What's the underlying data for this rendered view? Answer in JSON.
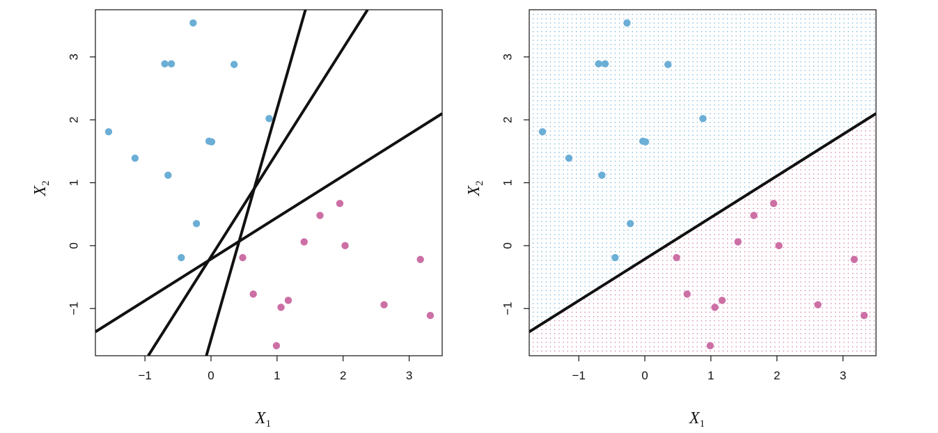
{
  "chart_data": [
    {
      "type": "scatter",
      "xlabel": "X",
      "xlabel_sub": "1",
      "ylabel": "X",
      "ylabel_sub": "2",
      "xlim": [
        -1.75,
        3.5
      ],
      "ylim": [
        -1.75,
        3.75
      ],
      "x_ticks": [
        -1,
        0,
        1,
        2,
        3
      ],
      "y_ticks": [
        -1,
        0,
        1,
        2,
        3
      ],
      "x_tick_labels": [
        "−1",
        "0",
        "1",
        "2",
        "3"
      ],
      "y_tick_labels": [
        "−1",
        "0",
        "1",
        "2",
        "3"
      ],
      "grid": false,
      "background_region": false,
      "series": [
        {
          "color": "#6baed6",
          "points": [
            [
              -0.27,
              3.54
            ],
            [
              -0.7,
              2.89
            ],
            [
              -0.6,
              2.89
            ],
            [
              0.35,
              2.88
            ],
            [
              0.88,
              2.02
            ],
            [
              -1.55,
              1.81
            ],
            [
              -0.03,
              1.66
            ],
            [
              0.01,
              1.65
            ],
            [
              -1.15,
              1.39
            ],
            [
              -0.65,
              1.12
            ],
            [
              -0.22,
              0.35
            ],
            [
              -0.45,
              -0.19
            ]
          ]
        },
        {
          "color": "#cc6fa5",
          "points": [
            [
              1.95,
              0.67
            ],
            [
              1.65,
              0.48
            ],
            [
              1.41,
              0.06
            ],
            [
              2.03,
              0.0
            ],
            [
              0.48,
              -0.19
            ],
            [
              3.17,
              -0.22
            ],
            [
              0.64,
              -0.77
            ],
            [
              1.17,
              -0.87
            ],
            [
              1.06,
              -0.98
            ],
            [
              2.62,
              -0.94
            ],
            [
              3.32,
              -1.11
            ],
            [
              0.99,
              -1.59
            ]
          ]
        }
      ],
      "lines": [
        {
          "points": [
            [
              -1.75,
              -1.37
            ],
            [
              3.5,
              2.1
            ]
          ]
        },
        {
          "points": [
            [
              -0.95,
              -1.75
            ],
            [
              2.37,
              3.75
            ]
          ]
        },
        {
          "points": [
            [
              -0.07,
              -1.75
            ],
            [
              1.43,
              3.75
            ]
          ]
        }
      ]
    },
    {
      "type": "scatter",
      "xlabel": "X",
      "xlabel_sub": "1",
      "ylabel": "X",
      "ylabel_sub": "2",
      "xlim": [
        -1.75,
        3.5
      ],
      "ylim": [
        -1.75,
        3.75
      ],
      "x_ticks": [
        -1,
        0,
        1,
        2,
        3
      ],
      "y_ticks": [
        -1,
        0,
        1,
        2,
        3
      ],
      "x_tick_labels": [
        "−1",
        "0",
        "1",
        "2",
        "3"
      ],
      "y_tick_labels": [
        "−1",
        "0",
        "1",
        "2",
        "3"
      ],
      "grid": false,
      "background_region": true,
      "region_colors": {
        "above": "#6baed6",
        "below": "#cc6fa5"
      },
      "series": [
        {
          "color": "#6baed6",
          "points": [
            [
              -0.27,
              3.54
            ],
            [
              -0.7,
              2.89
            ],
            [
              -0.6,
              2.89
            ],
            [
              0.35,
              2.88
            ],
            [
              0.88,
              2.02
            ],
            [
              -1.55,
              1.81
            ],
            [
              -0.03,
              1.66
            ],
            [
              0.01,
              1.65
            ],
            [
              -1.15,
              1.39
            ],
            [
              -0.65,
              1.12
            ],
            [
              -0.22,
              0.35
            ],
            [
              -0.45,
              -0.19
            ]
          ]
        },
        {
          "color": "#cc6fa5",
          "points": [
            [
              1.95,
              0.67
            ],
            [
              1.65,
              0.48
            ],
            [
              1.41,
              0.06
            ],
            [
              2.03,
              0.0
            ],
            [
              0.48,
              -0.19
            ],
            [
              3.17,
              -0.22
            ],
            [
              0.64,
              -0.77
            ],
            [
              1.17,
              -0.87
            ],
            [
              1.06,
              -0.98
            ],
            [
              2.62,
              -0.94
            ],
            [
              3.32,
              -1.11
            ],
            [
              0.99,
              -1.59
            ]
          ]
        }
      ],
      "lines": [
        {
          "points": [
            [
              -1.75,
              -1.37
            ],
            [
              3.5,
              2.1
            ]
          ]
        }
      ]
    }
  ]
}
